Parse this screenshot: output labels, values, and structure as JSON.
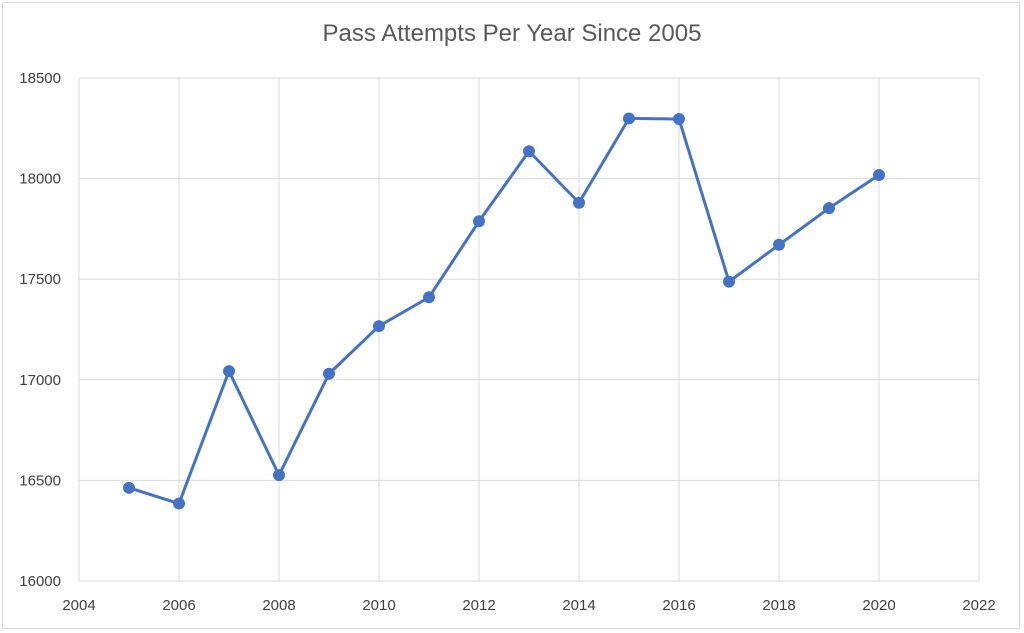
{
  "chart_data": {
    "type": "scatter",
    "title": "Pass Attempts Per Year Since 2005",
    "xlabel": "",
    "ylabel": "",
    "xlim": [
      2004,
      2022
    ],
    "ylim": [
      16000,
      18500
    ],
    "xticks": [
      2004,
      2006,
      2008,
      2010,
      2012,
      2014,
      2016,
      2018,
      2020,
      2022
    ],
    "yticks": [
      16000,
      16500,
      17000,
      17500,
      18000,
      18500
    ],
    "grid": true,
    "line_color": "#4472c4",
    "grid_color": "#d9d9d9",
    "series": [
      {
        "x": [
          2005,
          2006,
          2007,
          2008,
          2009,
          2010,
          2011,
          2012,
          2013,
          2014,
          2015,
          2016,
          2017,
          2018,
          2019,
          2020
        ],
        "y": [
          16463,
          16385,
          17043,
          16526,
          17030,
          17267,
          17410,
          17788,
          18136,
          17880,
          18299,
          18296,
          17488,
          17671,
          17853,
          18018
        ]
      }
    ]
  }
}
